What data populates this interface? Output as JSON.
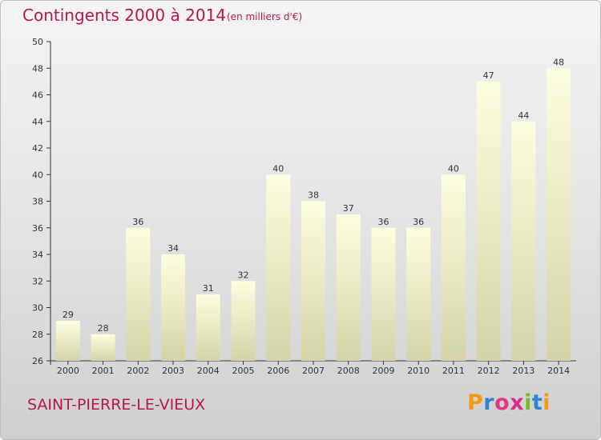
{
  "header": {
    "title": "Contingents 2000 à 2014",
    "subtitle": "(en milliers d'€)"
  },
  "footer": {
    "town": "SAINT-PIERRE-LE-VIEUX",
    "logo_letters": [
      "P",
      "r",
      "o",
      "x",
      "i",
      "t",
      "i"
    ]
  },
  "colors": {
    "title": "#b5174f",
    "bar_top": "#fdfde0",
    "bar_bottom": "#d4d4a8",
    "axis": "#333333"
  },
  "chart_data": {
    "type": "bar",
    "title": "Contingents 2000 à 2014",
    "subtitle": "(en milliers d'€)",
    "xlabel": "",
    "ylabel": "",
    "categories": [
      "2000",
      "2001",
      "2002",
      "2003",
      "2004",
      "2005",
      "2006",
      "2007",
      "2008",
      "2009",
      "2010",
      "2011",
      "2012",
      "2013",
      "2014"
    ],
    "values": [
      29,
      28,
      36,
      34,
      31,
      32,
      40,
      38,
      37,
      36,
      36,
      40,
      47,
      44,
      48
    ],
    "data_labels": [
      "29",
      "28",
      "36",
      "34",
      "31",
      "32",
      "40",
      "38",
      "37",
      "36",
      "36",
      "40",
      "47",
      "44",
      "48"
    ],
    "ylim": [
      26,
      50
    ],
    "yticks": [
      26,
      28,
      30,
      32,
      34,
      36,
      38,
      40,
      42,
      44,
      46,
      48,
      50
    ],
    "ytick_labels": [
      "26",
      "28",
      "30",
      "32",
      "34",
      "36",
      "38",
      "40",
      "42",
      "44",
      "46",
      "48",
      "50"
    ],
    "grid": false,
    "legend": "none"
  }
}
